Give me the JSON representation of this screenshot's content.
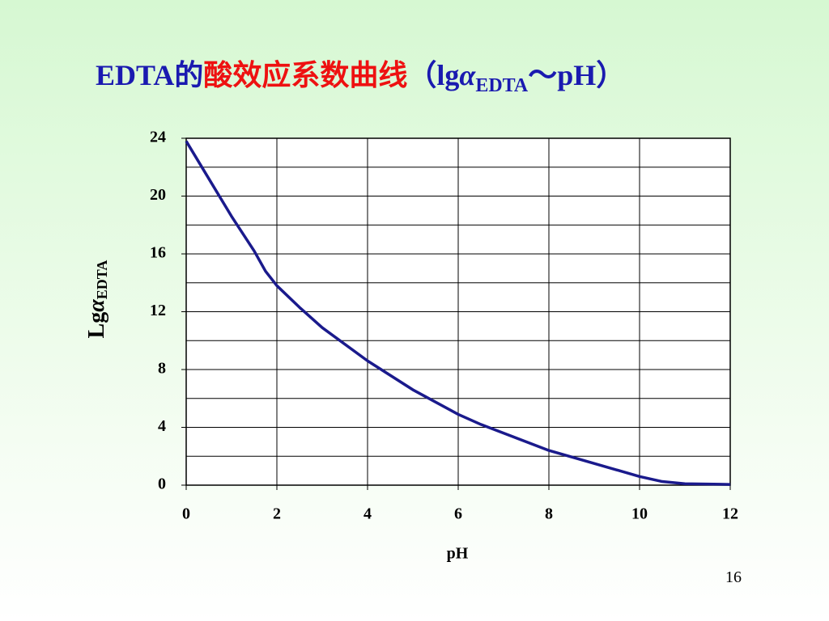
{
  "chart_data": {
    "type": "line",
    "title_parts": {
      "prefix": "EDTA的",
      "highlight": "酸效应系数曲线",
      "open": "（lg",
      "symbol": "α",
      "subscript": "EDTA",
      "close": "～pH）"
    },
    "x_label": "pH",
    "y_label": {
      "text": "Lg",
      "symbol": "α",
      "subscript": "EDTA"
    },
    "x": [
      0,
      0.5,
      1,
      1.5,
      1.75,
      2,
      2.5,
      3,
      4,
      5,
      6,
      6.5,
      7,
      8,
      9,
      10,
      10.5,
      11,
      12
    ],
    "series": [
      {
        "name": "lgα(EDTA)",
        "color": "#1a1a8c",
        "values": [
          23.8,
          21.2,
          18.6,
          16.2,
          14.8,
          13.8,
          12.3,
          10.9,
          8.6,
          6.6,
          4.9,
          4.2,
          3.6,
          2.4,
          1.5,
          0.6,
          0.25,
          0.1,
          0.05
        ]
      }
    ],
    "xlim": [
      0,
      12
    ],
    "xticks": [
      0,
      2,
      4,
      6,
      8,
      10,
      12
    ],
    "ylim": [
      0,
      24
    ],
    "yticks": [
      0,
      4,
      8,
      12,
      16,
      20,
      24
    ],
    "y_minor_ticks": [
      2,
      6,
      10,
      14,
      18,
      22
    ],
    "grid": true
  },
  "page_number": "16"
}
